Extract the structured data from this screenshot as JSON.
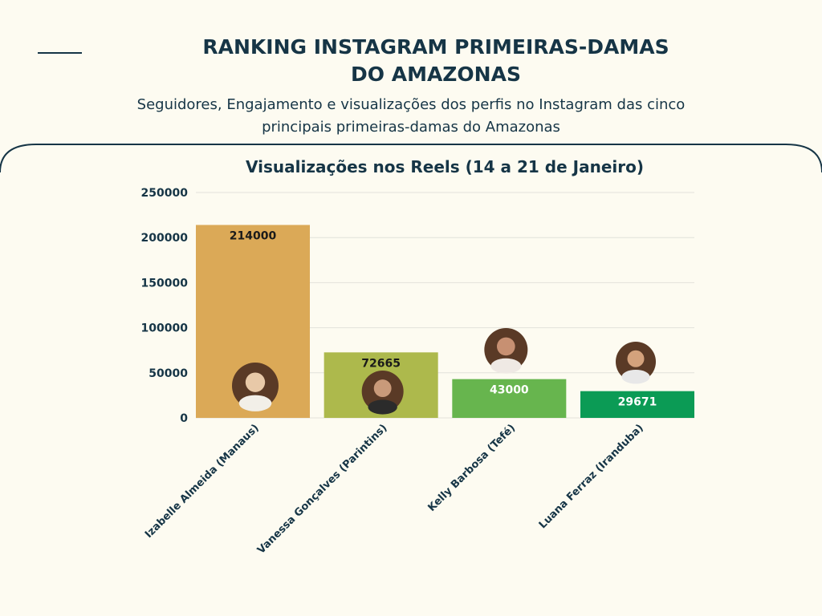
{
  "header": {
    "title_line1": "RANKING INSTAGRAM PRIMEIRAS-DAMAS",
    "title_line2": "DO AMAZONAS",
    "subtitle_line1": "Seguidores, Engajamento e visualizações dos perfis no Instagram das cinco",
    "subtitle_line2": "principais primeiras-damas do Amazonas"
  },
  "chart_data": {
    "type": "bar",
    "title": "Visualizações nos Reels (14 a 21 de Janeiro)",
    "categories": [
      "Izabelle Almeida (Manaus)",
      "Vanessa Gonçalves (Parintins)",
      "Kelly Barbosa (Tefé)",
      "Luana Ferraz (Iranduba)"
    ],
    "values": [
      214000,
      72665,
      43000,
      29671
    ],
    "data_labels": [
      "214000",
      "72665",
      "43000",
      "29671"
    ],
    "yticks": [
      0,
      50000,
      100000,
      150000,
      200000,
      250000
    ],
    "ylim": [
      0,
      250000
    ],
    "xlabel": "",
    "ylabel": "",
    "grid": true,
    "colors": [
      "#dba957",
      "#adb94c",
      "#67b54e",
      "#0b9b55"
    ],
    "label_colors": [
      "#1a1a1a",
      "#1a1a1a",
      "#ffffff",
      "#ffffff"
    ],
    "avatar_icons": [
      "avatar-photo",
      "avatar-photo",
      "avatar-photo",
      "avatar-photo"
    ]
  },
  "colors": {
    "background": "#fdfbf1",
    "text": "#163546",
    "grid": "#e2e2da"
  }
}
